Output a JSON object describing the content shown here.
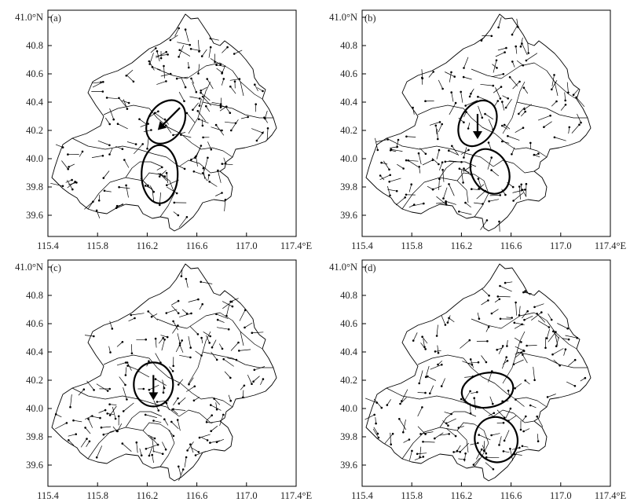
{
  "panels": [
    {
      "label": "(a)"
    },
    {
      "label": "(b)"
    },
    {
      "label": "(c)"
    },
    {
      "label": "(d)"
    }
  ],
  "axes": {
    "lat_labels": [
      "41.0°N",
      "40.8",
      "40.6",
      "40.4",
      "40.2",
      "40.0",
      "39.8",
      "39.6"
    ],
    "lat_values": [
      41.0,
      40.8,
      40.6,
      40.4,
      40.2,
      40.0,
      39.8,
      39.6
    ],
    "lon_labels": [
      "115.4",
      "115.8",
      "116.2",
      "116.6",
      "117.0",
      "117.4°E"
    ],
    "lon_values": [
      115.4,
      115.8,
      116.2,
      116.6,
      117.0,
      117.4
    ],
    "lon_range": [
      115.4,
      117.4
    ],
    "lat_range": [
      39.45,
      41.05
    ]
  },
  "highlights": [
    {
      "panel": "(a)",
      "ellipses": [
        {
          "lon": 116.35,
          "lat": 40.26
        },
        {
          "lon": 116.3,
          "lat": 39.89
        }
      ],
      "arrow_dir": "southwest"
    },
    {
      "panel": "(b)",
      "ellipses": [
        {
          "lon": 116.33,
          "lat": 40.25
        },
        {
          "lon": 116.43,
          "lat": 39.91
        }
      ],
      "arrow_dir": "south"
    },
    {
      "panel": "(c)",
      "ellipses": [
        {
          "lon": 116.25,
          "lat": 40.17
        }
      ],
      "arrow_dir": "south"
    },
    {
      "panel": "(d)",
      "ellipses": [
        {
          "lon": 116.41,
          "lat": 40.13
        },
        {
          "lon": 116.48,
          "lat": 39.78
        }
      ],
      "arrow_dir": ""
    }
  ]
}
